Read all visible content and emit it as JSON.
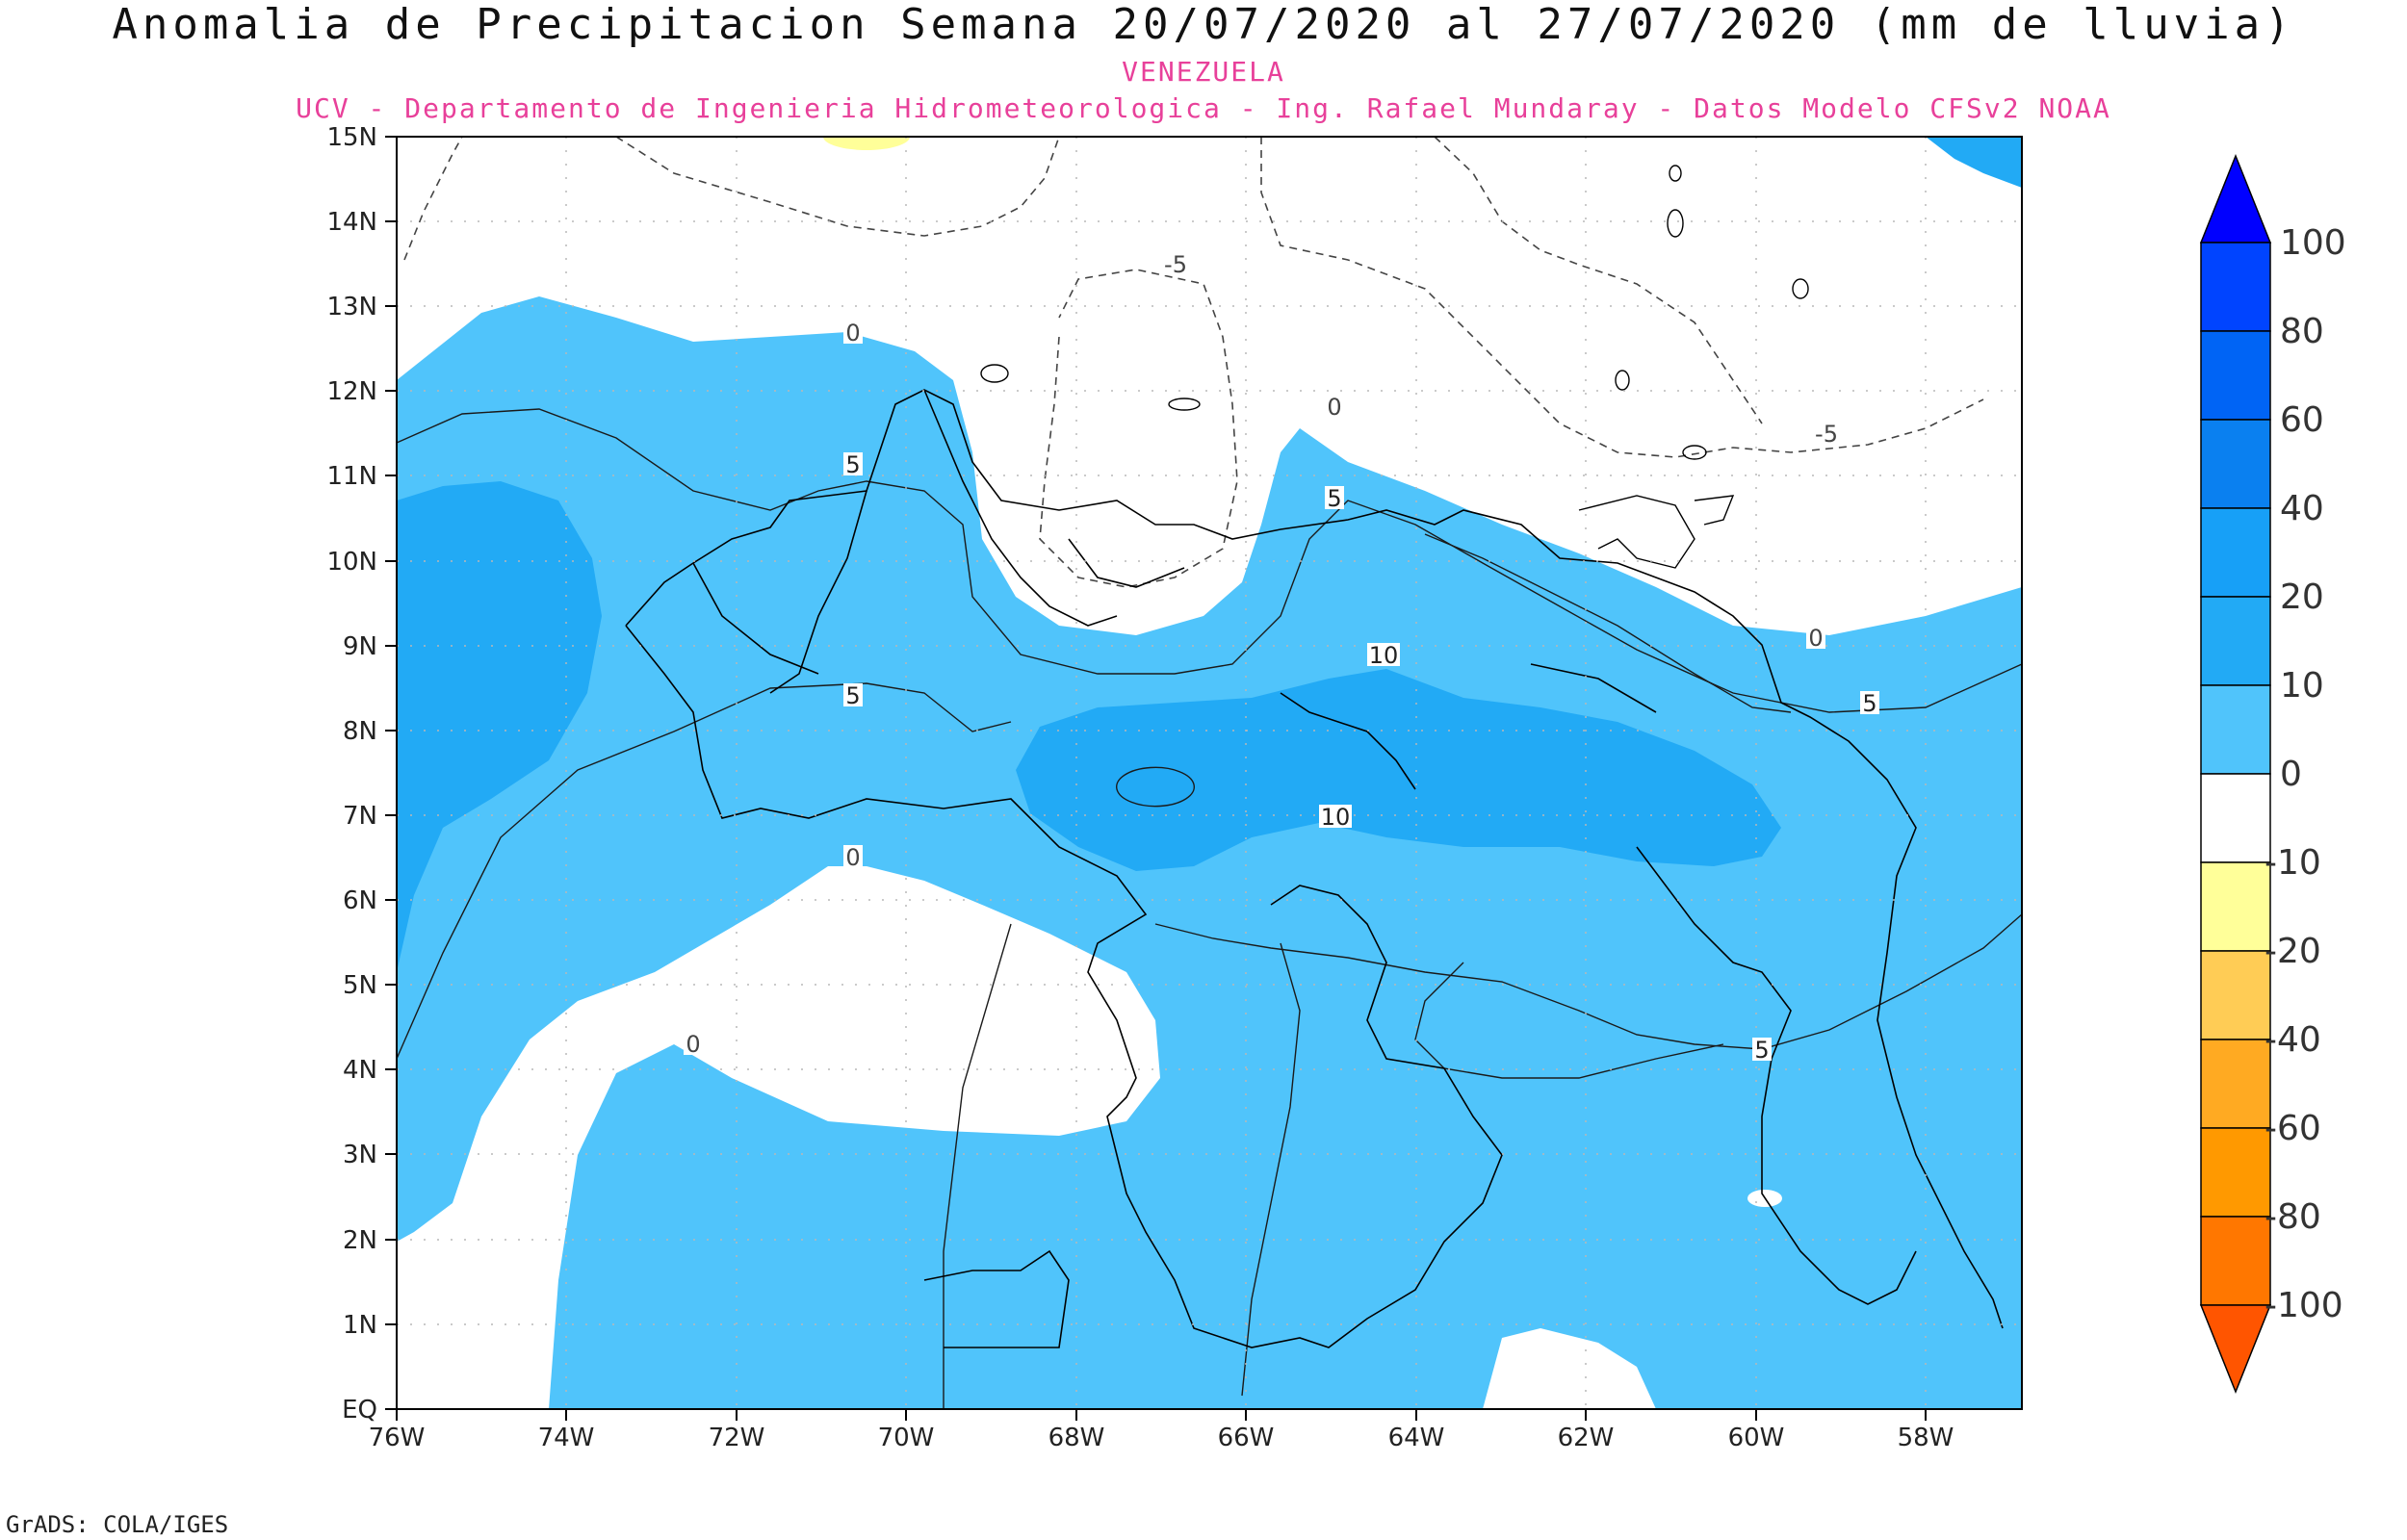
{
  "title": "Anomalia de Precipitacion Semana 20/07/2020 al 27/07/2020 (mm de lluvia)",
  "subtitle": "VENEZUELA",
  "credit": "UCV - Departamento de Ingenieria Hidrometeorologica - Ing. Rafael Mundaray - Datos Modelo CFSv2 NOAA",
  "footer": "GrADS: COLA/IGES",
  "colors": {
    "c0_10": "#50c4fb",
    "c10_20": "#22aaf5",
    "c20_40": "#0d8ff0",
    "neg": "#ffffff",
    "land_line": "#000000",
    "accent_pink": "#e8409a"
  },
  "map": {
    "lat_labels": [
      "15N",
      "14N",
      "13N",
      "12N",
      "11N",
      "10N",
      "9N",
      "8N",
      "7N",
      "6N",
      "5N",
      "4N",
      "3N",
      "2N",
      "1N",
      "EQ"
    ],
    "lon_labels": [
      "76W",
      "74W",
      "72W",
      "70W",
      "68W",
      "66W",
      "64W",
      "62W",
      "60W",
      "58W"
    ],
    "contour_labels": [
      "0",
      "0",
      "0",
      "0",
      "0",
      "5",
      "5",
      "5",
      "5",
      "5",
      "10",
      "10",
      "-5",
      "-5"
    ]
  },
  "colorbar": {
    "labels": [
      "100",
      "80",
      "60",
      "40",
      "20",
      "10",
      "0",
      "-10",
      "-20",
      "-40",
      "-60",
      "-80",
      "-100"
    ],
    "colors": [
      "#0000ff",
      "#0044ff",
      "#0064f5",
      "#0a80f0",
      "#17a0f7",
      "#22aaf5",
      "#50c4fb",
      "#ffffff",
      "#ffff99",
      "#ffcc55",
      "#ffaa22",
      "#ff9900",
      "#ff7700",
      "#ff5500"
    ]
  }
}
